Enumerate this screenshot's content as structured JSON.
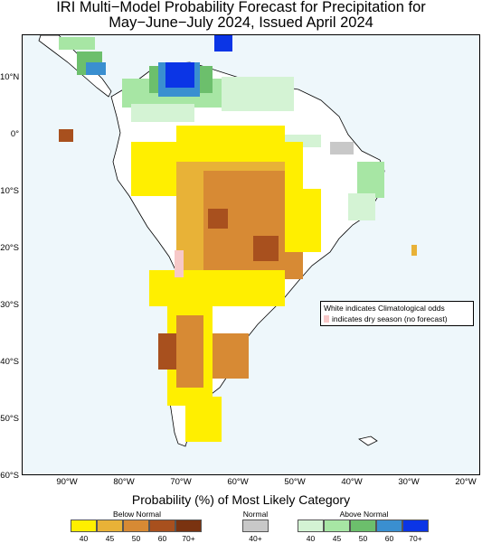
{
  "title": {
    "line1": "IRI Multi−Model Probability Forecast for Precipitation for",
    "line2": "May−June−July 2024, Issued April 2024"
  },
  "map": {
    "lat_labels": [
      "10°N",
      "0°",
      "10°S",
      "20°S",
      "30°S",
      "40°S",
      "50°S",
      "60°S"
    ],
    "lon_labels": [
      "90°W",
      "80°W",
      "70°W",
      "60°W",
      "50°W",
      "40°W",
      "30°W",
      "20°W"
    ],
    "ocean_color": "#eef7fb",
    "land_color": "#ffffff"
  },
  "note": {
    "line1": "White indicates Climatological odds",
    "line2": "indicates dry season (no forecast)",
    "dry_color": "#f7c8c8"
  },
  "legend": {
    "title": "Probability (%) of Most Likely Category",
    "below_normal": {
      "label": "Below Normal",
      "levels": [
        "40",
        "45",
        "50",
        "60",
        "70+"
      ],
      "colors": [
        "#ffef00",
        "#e8b237",
        "#d78a34",
        "#a8501e",
        "#7a3310"
      ]
    },
    "normal": {
      "label": "Normal",
      "levels": [
        "40+"
      ],
      "colors": [
        "#c8c8c8"
      ]
    },
    "above_normal": {
      "label": "Above Normal",
      "levels": [
        "40",
        "45",
        "50",
        "60",
        "70+"
      ],
      "colors": [
        "#d4f3d4",
        "#a7e6a4",
        "#6cbf6c",
        "#3a8fd0",
        "#0b35e6"
      ]
    }
  }
}
